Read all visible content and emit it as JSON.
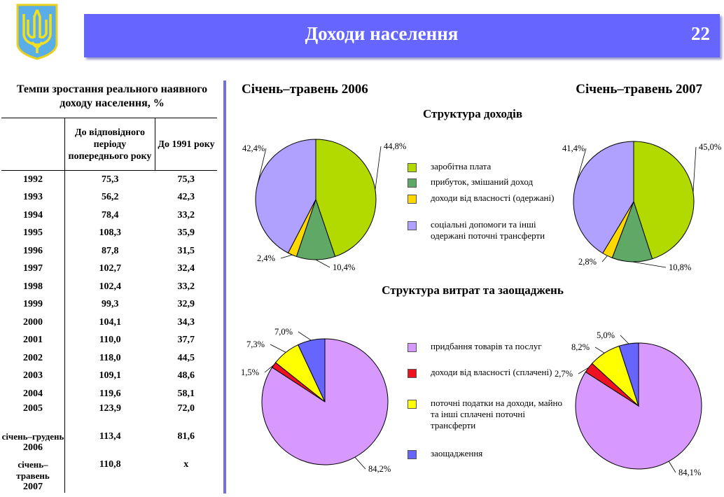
{
  "header": {
    "title": "Доходи населення",
    "page_number": "22",
    "logo_icon": "trident-coat-of-arms-icon"
  },
  "table": {
    "title": "Темпи зростання реального наявного доходу населення, %",
    "columns": [
      "",
      "До відповідного періоду попереднього року",
      "До 1991 року"
    ],
    "rows": [
      {
        "year": "1992",
        "period": "",
        "prev": "75,3",
        "base": "75,3"
      },
      {
        "year": "1993",
        "period": "",
        "prev": "56,2",
        "base": "42,3"
      },
      {
        "year": "1994",
        "period": "",
        "prev": "78,4",
        "base": "33,2"
      },
      {
        "year": "1995",
        "period": "",
        "prev": "108,3",
        "base": "35,9"
      },
      {
        "year": "1996",
        "period": "",
        "prev": "87,8",
        "base": "31,5"
      },
      {
        "year": "1997",
        "period": "",
        "prev": "102,7",
        "base": "32,4"
      },
      {
        "year": "1998",
        "period": "",
        "prev": "102,4",
        "base": "33,2"
      },
      {
        "year": "1999",
        "period": "",
        "prev": "99,3",
        "base": "32,9"
      },
      {
        "year": "2000",
        "period": "",
        "prev": "104,1",
        "base": "34,3"
      },
      {
        "year": "2001",
        "period": "",
        "prev": "110,0",
        "base": "37,7"
      },
      {
        "year": "2002",
        "period": "",
        "prev": "118,0",
        "base": "44,5"
      },
      {
        "year": "2003",
        "period": "",
        "prev": "109,1",
        "base": "48,6"
      },
      {
        "year": "2004",
        "period": "",
        "prev": "119,6",
        "base": "58,1"
      },
      {
        "year": "2005",
        "period": "січень–грудень",
        "prev": "123,9",
        "base": "72,0"
      },
      {
        "year": "2006",
        "period": "січень–травень",
        "prev": "113,4",
        "base": "81,6"
      },
      {
        "year": "2007",
        "period": "",
        "prev": "110,8",
        "base": "x"
      }
    ]
  },
  "period_left": "Січень–травень 2006",
  "period_right": "Січень–травень 2007",
  "income_title": "Структура доходів",
  "expense_title": "Структура витрат та заощаджень",
  "chart_data": [
    {
      "type": "pie",
      "title": "Структура доходів — Січень–травень 2006",
      "categories": [
        "заробітна плата",
        "прибуток, змішаний доход",
        "доходи від власності (одержані)",
        "соціальні допомоги та інші одержані поточні трансферти"
      ],
      "values": [
        44.8,
        10.4,
        2.4,
        42.4
      ],
      "labels": [
        "44,8%",
        "10,4%",
        "2,4%",
        "42,4%"
      ],
      "colors": [
        "#b2d900",
        "#5fa865",
        "#ffd800",
        "#b0a0ff"
      ]
    },
    {
      "type": "pie",
      "title": "Структура доходів — Січень–травень 2007",
      "categories": [
        "заробітна плата",
        "прибуток, змішаний доход",
        "доходи від власності (одержані)",
        "соціальні допомоги та інші одержані поточні трансферти"
      ],
      "values": [
        45.0,
        10.8,
        2.8,
        41.4
      ],
      "labels": [
        "45,0%",
        "10,8%",
        "2,8%",
        "41,4%"
      ],
      "colors": [
        "#b2d900",
        "#5fa865",
        "#ffd800",
        "#b0a0ff"
      ]
    },
    {
      "type": "pie",
      "title": "Структура витрат та заощаджень — Січень–травень 2006",
      "categories": [
        "придбання товарів та послуг",
        "доходи від власності (сплачені)",
        "поточні податки на доходи, майно та інші сплачені поточні трансферти",
        "заощадження"
      ],
      "values": [
        84.2,
        1.5,
        7.3,
        7.0
      ],
      "labels": [
        "84,2%",
        "1,5%",
        "7,3%",
        "7,0%"
      ],
      "colors": [
        "#d899ff",
        "#ee1122",
        "#ffff00",
        "#6666ff"
      ]
    },
    {
      "type": "pie",
      "title": "Структура витрат та заощаджень — Січень–травень 2007",
      "categories": [
        "придбання товарів та послуг",
        "доходи від власності (сплачені)",
        "поточні податки на доходи, майно та інші сплачені поточні трансферти",
        "заощадження"
      ],
      "values": [
        84.1,
        2.7,
        8.2,
        5.0
      ],
      "labels": [
        "84,1%",
        "2,7%",
        "8,2%",
        "5,0%"
      ],
      "colors": [
        "#d899ff",
        "#ee1122",
        "#ffff00",
        "#6666ff"
      ]
    }
  ],
  "income_legend": [
    "заробітна плата",
    "прибуток, змішаний доход",
    "доходи від власності (одержані)",
    "соціальні допомоги та інші одержані поточні трансферти"
  ],
  "expense_legend": [
    "придбання товарів та послуг",
    "доходи від власності (сплачені)",
    "поточні податки на доходи, майно та інші сплачені поточні трансферти",
    "заощадження"
  ]
}
